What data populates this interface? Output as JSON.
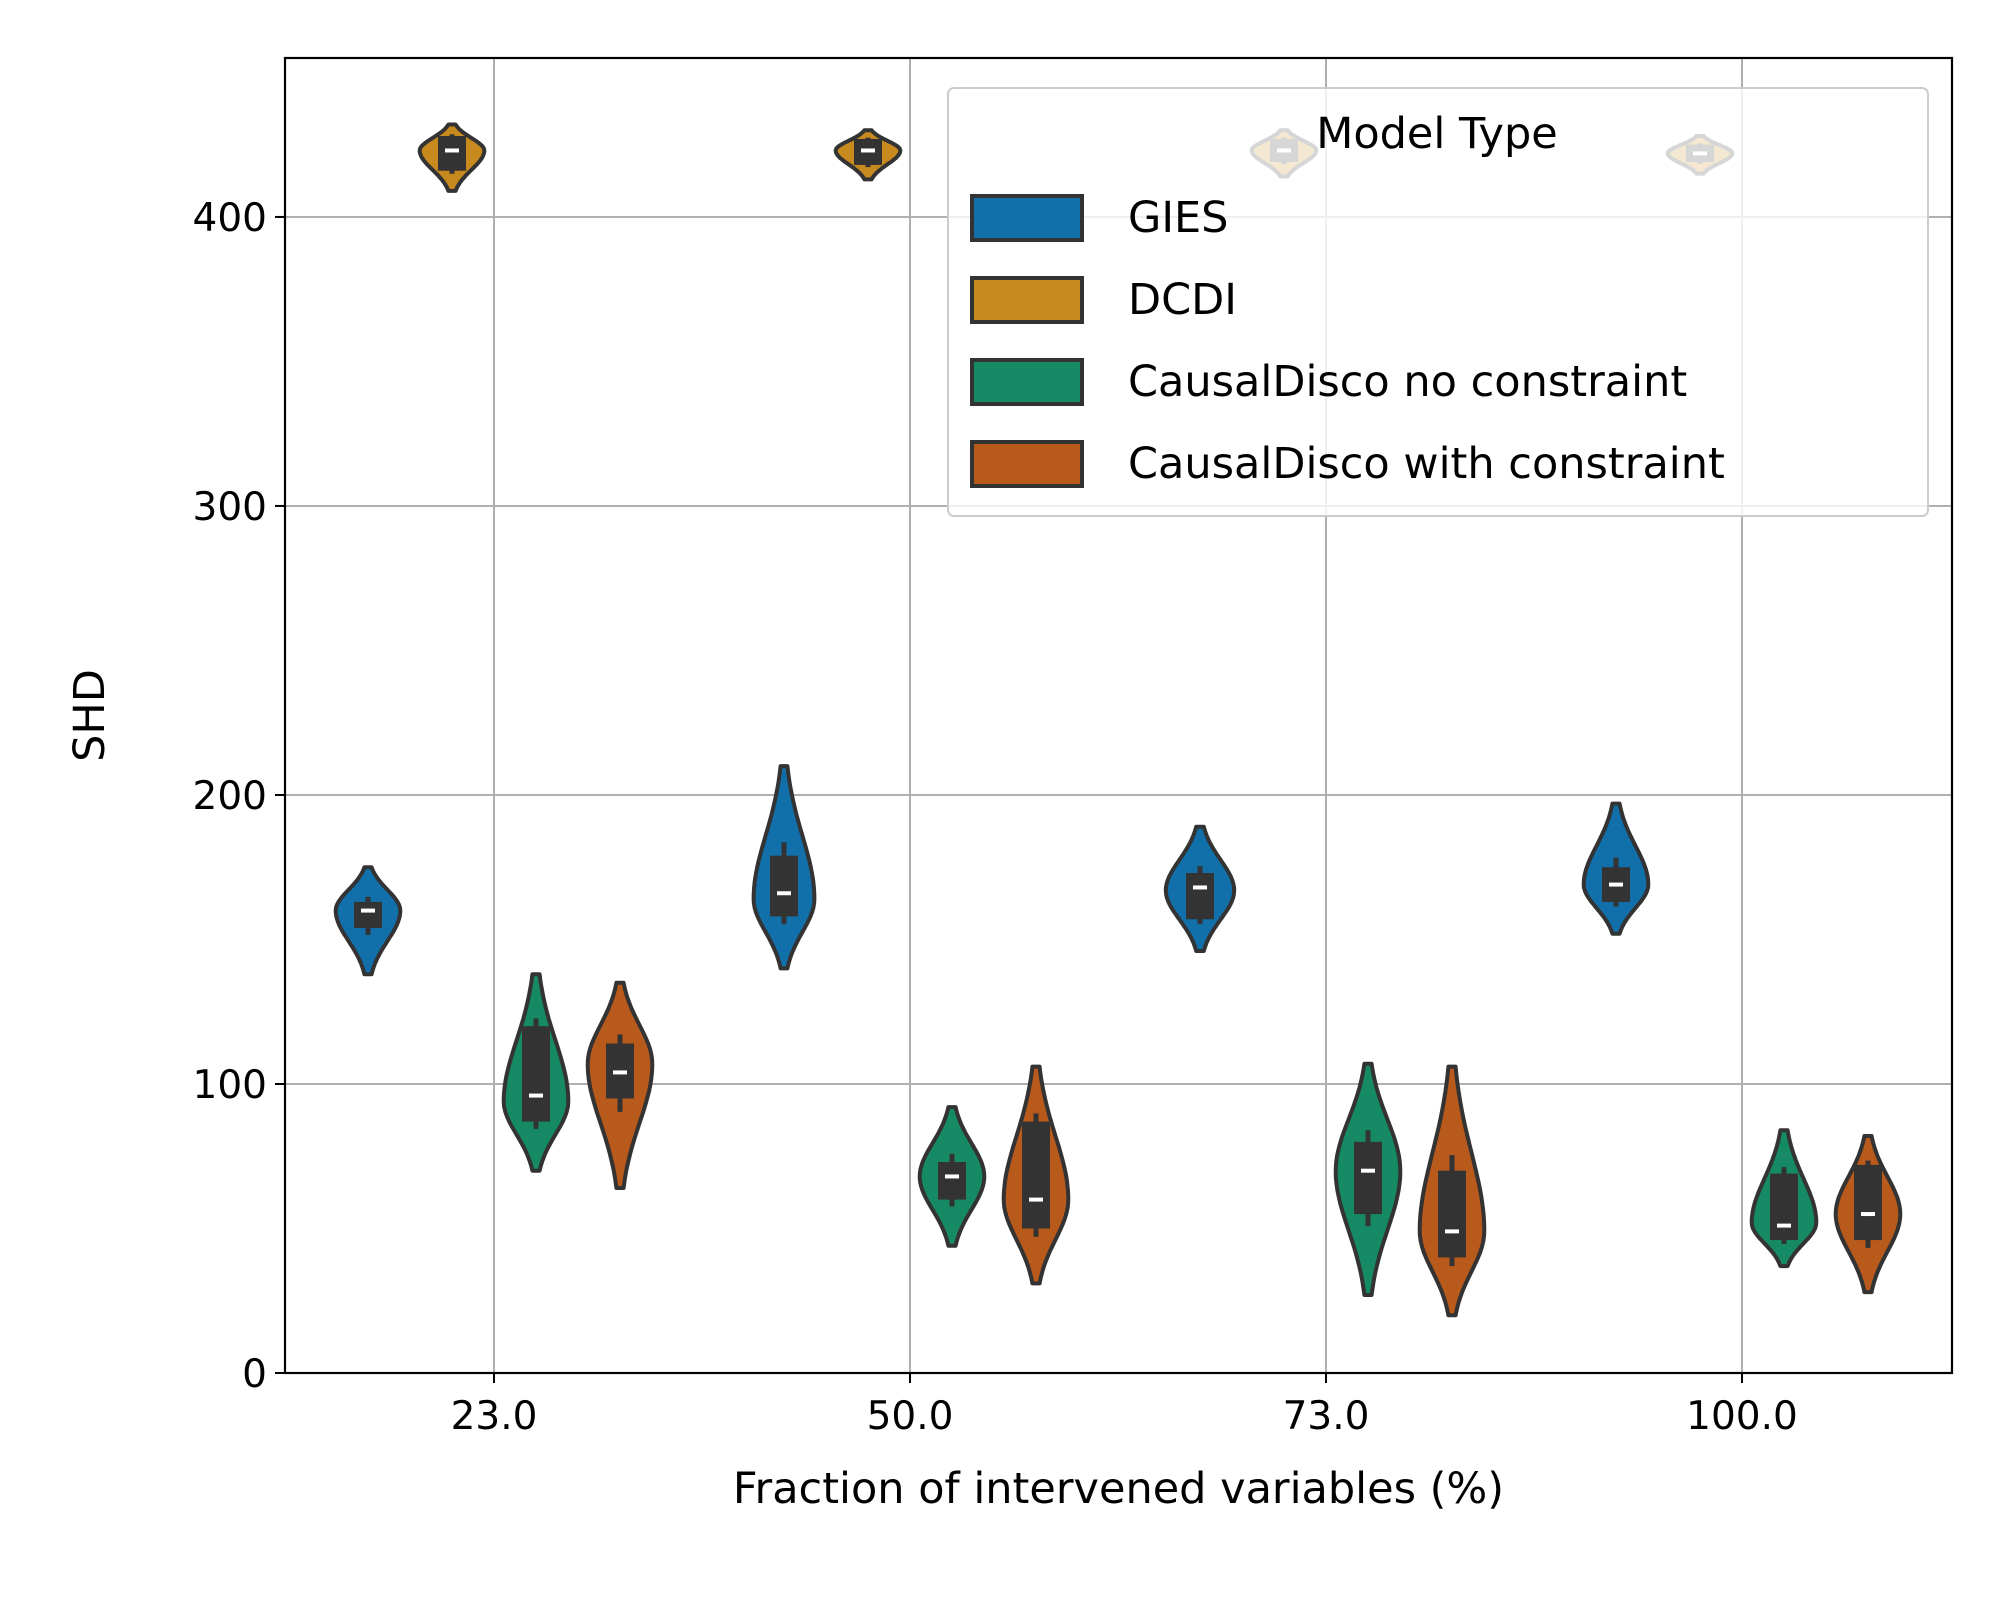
{
  "chart_data": {
    "type": "violin",
    "xlabel": "Fraction of intervened variables (%)",
    "ylabel": "SHD",
    "categories": [
      "23.0",
      "50.0",
      "73.0",
      "100.0"
    ],
    "ylim": [
      0,
      455
    ],
    "yticks": [
      0,
      100,
      200,
      300,
      400
    ],
    "grid": true,
    "legend": {
      "title": "Model Type",
      "placement": "top-right"
    },
    "series": [
      {
        "name": "GIES",
        "color": "#1170aa",
        "violins": [
          {
            "min": 138,
            "max": 175,
            "q1": 154,
            "median": 160,
            "q3": 163,
            "mode": 160,
            "width": 0.85
          },
          {
            "min": 140,
            "max": 210,
            "q1": 158,
            "median": 166,
            "q3": 179,
            "mode": 164,
            "width": 0.8
          },
          {
            "min": 146,
            "max": 189,
            "q1": 157,
            "median": 168,
            "q3": 173,
            "mode": 167,
            "width": 0.9
          },
          {
            "min": 152,
            "max": 197,
            "q1": 163,
            "median": 169,
            "q3": 175,
            "mode": 169,
            "width": 0.85
          }
        ]
      },
      {
        "name": "DCDI",
        "color": "#c88a1e",
        "violins": [
          {
            "min": 409,
            "max": 432,
            "q1": 416,
            "median": 423,
            "q3": 428,
            "mode": 423,
            "width": 0.85
          },
          {
            "min": 413,
            "max": 430,
            "q1": 418,
            "median": 423,
            "q3": 427,
            "mode": 423,
            "width": 0.85
          },
          {
            "min": 414,
            "max": 430,
            "q1": 419,
            "median": 423,
            "q3": 427,
            "mode": 423,
            "width": 0.85
          },
          {
            "min": 415,
            "max": 428,
            "q1": 419,
            "median": 422,
            "q3": 425,
            "mode": 422,
            "width": 0.85
          }
        ]
      },
      {
        "name": "CausalDisco no constraint",
        "color": "#158a64",
        "violins": [
          {
            "min": 70,
            "max": 138,
            "q1": 87,
            "median": 96,
            "q3": 120,
            "mode": 94,
            "width": 0.85
          },
          {
            "min": 44,
            "max": 92,
            "q1": 60,
            "median": 68,
            "q3": 73,
            "mode": 68,
            "width": 0.85
          },
          {
            "min": 27,
            "max": 107,
            "q1": 55,
            "median": 70,
            "q3": 80,
            "mode": 70,
            "width": 0.85
          },
          {
            "min": 37,
            "max": 84,
            "q1": 46,
            "median": 51,
            "q3": 69,
            "mode": 52,
            "width": 0.85
          }
        ]
      },
      {
        "name": "CausalDisco with constraint",
        "color": "#b85a1c",
        "violins": [
          {
            "min": 64,
            "max": 135,
            "q1": 95,
            "median": 104,
            "q3": 114,
            "mode": 107,
            "width": 0.85
          },
          {
            "min": 31,
            "max": 106,
            "q1": 50,
            "median": 60,
            "q3": 87,
            "mode": 60,
            "width": 0.85
          },
          {
            "min": 20,
            "max": 106,
            "q1": 40,
            "median": 49,
            "q3": 70,
            "mode": 49,
            "width": 0.85
          },
          {
            "min": 28,
            "max": 82,
            "q1": 46,
            "median": 55,
            "q3": 72,
            "mode": 55,
            "width": 0.85
          }
        ]
      }
    ]
  }
}
